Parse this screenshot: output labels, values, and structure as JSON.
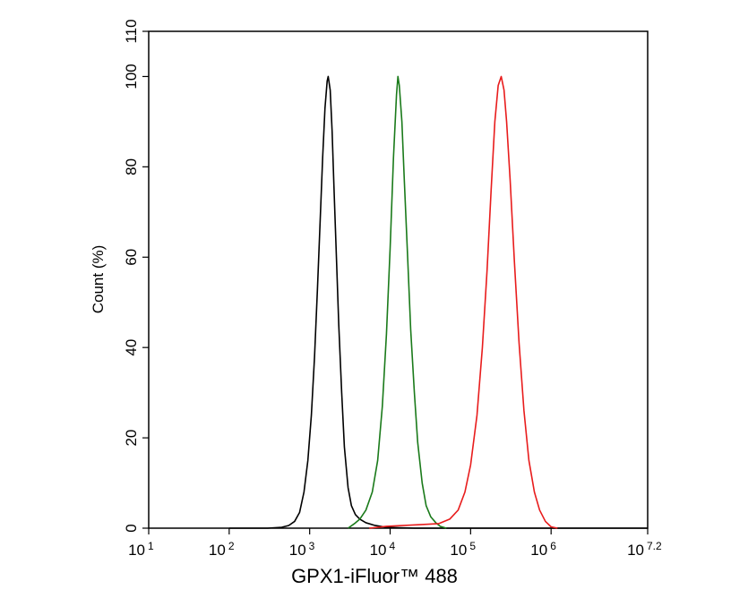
{
  "chart_data": {
    "type": "line",
    "title": "",
    "xlabel": "GPX1-iFluor™ 488",
    "ylabel": "Count  (%)",
    "x_scale": "log",
    "xlim_log10": [
      1,
      7.2
    ],
    "ylim": [
      0,
      110
    ],
    "grid": false,
    "legend": "none",
    "x_ticks": [
      {
        "base": "10",
        "exp": "1",
        "log10": 1
      },
      {
        "base": "10",
        "exp": "2",
        "log10": 2
      },
      {
        "base": "10",
        "exp": "3",
        "log10": 3
      },
      {
        "base": "10",
        "exp": "4",
        "log10": 4
      },
      {
        "base": "10",
        "exp": "5",
        "log10": 5
      },
      {
        "base": "10",
        "exp": "6",
        "log10": 6
      },
      {
        "base": "10",
        "exp": "7.2",
        "log10": 7.2
      }
    ],
    "y_ticks": [
      "0",
      "20",
      "40",
      "60",
      "80",
      "100",
      "110"
    ],
    "series": [
      {
        "color": "#000000",
        "x": [
          100,
          300,
          450,
          550,
          650,
          750,
          850,
          950,
          1050,
          1150,
          1250,
          1350,
          1450,
          1550,
          1650,
          1700,
          1800,
          1900,
          2000,
          2150,
          2300,
          2500,
          2700,
          3000,
          3300,
          3700,
          4200,
          5000,
          6500,
          9000,
          20000,
          16000000
        ],
        "y": [
          0,
          0,
          0.2,
          0.6,
          1.5,
          3.5,
          8,
          15,
          25,
          38,
          53,
          68,
          82,
          93,
          99,
          100,
          97,
          88,
          76,
          60,
          45,
          30,
          18,
          9,
          5,
          3,
          2,
          1.2,
          0.6,
          0.2,
          0,
          0
        ]
      },
      {
        "color": "#1a7a1a",
        "x": [
          3000,
          3600,
          4200,
          5000,
          6000,
          7000,
          8000,
          9000,
          10000,
          11000,
          12000,
          12500,
          13000,
          14000,
          15000,
          16500,
          18000,
          20000,
          22000,
          25000,
          28000,
          32000,
          37000,
          42000,
          50000
        ],
        "y": [
          0,
          1,
          2,
          4,
          8,
          15,
          27,
          43,
          62,
          82,
          96,
          100,
          98,
          90,
          77,
          60,
          44,
          30,
          19,
          10,
          5,
          2.5,
          1.2,
          0.4,
          0
        ]
      },
      {
        "color": "#e81c1c",
        "x": [
          5500,
          9000,
          15000,
          25000,
          40000,
          55000,
          70000,
          85000,
          100000,
          120000,
          140000,
          160000,
          180000,
          200000,
          220000,
          240000,
          260000,
          280000,
          310000,
          350000,
          400000,
          460000,
          530000,
          620000,
          720000,
          850000,
          1000000,
          1200000
        ],
        "y": [
          0,
          0.4,
          0.6,
          0.8,
          1,
          2,
          4,
          8,
          14,
          25,
          40,
          57,
          75,
          90,
          98,
          100,
          97,
          90,
          77,
          59,
          41,
          26,
          15,
          8,
          4,
          1.5,
          0.3,
          0
        ]
      }
    ]
  }
}
